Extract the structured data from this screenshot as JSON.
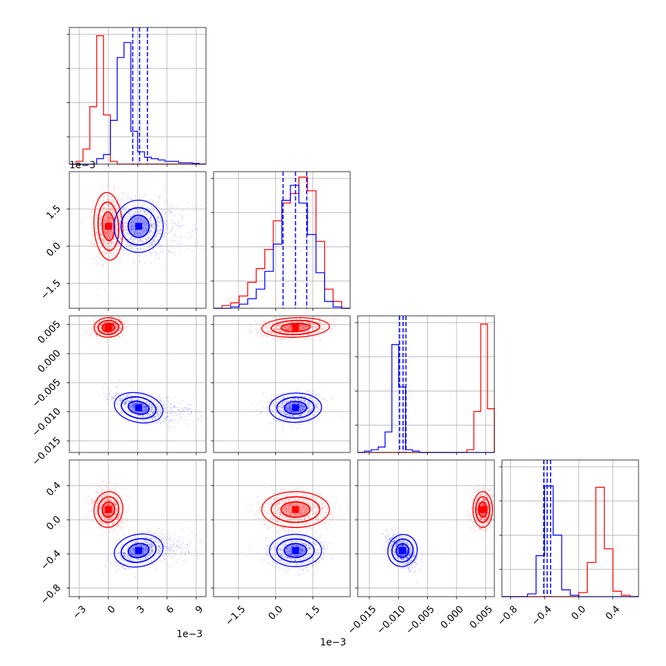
{
  "chart_data": {
    "type": "corner",
    "series": [
      {
        "name": "",
        "color": "#ff0000"
      },
      {
        "name": "",
        "color": "#0000ff"
      }
    ],
    "parameters": [
      {
        "index": 0,
        "range": [
          -4,
          10
        ],
        "tick_values": [
          -3,
          0,
          3,
          6,
          9
        ],
        "tick_labels": [
          "−3",
          "0",
          "3",
          "6",
          "9"
        ],
        "offset_label": "1e−3",
        "red": {
          "mean": 0.0,
          "sd": 0.7
        },
        "blue": {
          "mean": 3.1,
          "sd": 1.2,
          "skew_tail": true
        },
        "blue_quantiles": [
          2.5,
          3.2,
          4.0
        ],
        "red_hist": [
          0,
          0.02,
          0.11,
          0.42,
          0.94,
          0.36,
          0.02,
          0,
          0,
          0,
          0,
          0,
          0,
          0,
          0,
          0,
          0,
          0,
          0,
          0
        ],
        "blue_hist": [
          0,
          0,
          0,
          0,
          0.04,
          0.07,
          0.32,
          0.78,
          0.89,
          0.24,
          0.09,
          0.05,
          0.04,
          0.03,
          0.02,
          0.02,
          0.01,
          0.01,
          0.005,
          0
        ]
      },
      {
        "index": 1,
        "range": [
          -2.5,
          3.0
        ],
        "tick_values": [
          -1.5,
          0.0,
          1.5
        ],
        "tick_labels": [
          "−1.5",
          "0.0",
          "1.5"
        ],
        "offset_label": "1e−3",
        "red": {
          "mean": 0.8,
          "sd": 0.65
        },
        "blue": {
          "mean": 0.8,
          "sd": 0.5
        },
        "blue_quantiles": [
          0.3,
          0.8,
          1.25
        ],
        "red_hist": [
          0,
          0.02,
          0.04,
          0.09,
          0.19,
          0.29,
          0.43,
          0.64,
          0.77,
          0.84,
          0.96,
          0.86,
          0.49,
          0.14,
          0.05,
          0
        ],
        "blue_hist": [
          0,
          0,
          0.01,
          0.03,
          0.07,
          0.14,
          0.27,
          0.47,
          0.79,
          0.9,
          0.77,
          0.54,
          0.26,
          0.05,
          0.01,
          0
        ]
      },
      {
        "index": 2,
        "range": [
          -0.017,
          0.0065
        ],
        "tick_values": [
          -0.015,
          -0.01,
          -0.005,
          0.0,
          0.005
        ],
        "tick_labels": [
          "−0.015",
          "−0.010",
          "−0.005",
          "0.000",
          "0.005"
        ],
        "red": {
          "mean": 0.0045,
          "sd": 0.0008
        },
        "blue": {
          "mean": -0.0093,
          "sd": 0.0012
        },
        "blue_quantiles": [
          -0.0098,
          -0.0092,
          -0.0087
        ],
        "red_hist": [
          0,
          0,
          0,
          0,
          0,
          0,
          0,
          0,
          0,
          0,
          0,
          0,
          0,
          0,
          0,
          0,
          0.02,
          0.3,
          0.94,
          0.32
        ],
        "blue_hist": [
          0,
          0.01,
          0.02,
          0.04,
          0.15,
          0.79,
          0.48,
          0.02,
          0.01,
          0,
          0,
          0,
          0,
          0,
          0,
          0,
          0,
          0,
          0,
          0
        ]
      },
      {
        "index": 3,
        "range": [
          -0.9,
          0.7
        ],
        "tick_values": [
          -0.8,
          -0.4,
          0.0,
          0.4
        ],
        "tick_labels": [
          "−0.8",
          "−0.4",
          "0.0",
          "0.4"
        ],
        "red": {
          "mean": 0.12,
          "sd": 0.1
        },
        "blue": {
          "mean": -0.36,
          "sd": 0.09
        },
        "blue_quantiles": [
          -0.41,
          -0.37,
          -0.33
        ],
        "red_hist": [
          0,
          0,
          0,
          0,
          0,
          0,
          0,
          0,
          0,
          0.03,
          0.25,
          0.8,
          0.35,
          0.04,
          0.01,
          0
        ],
        "blue_hist": [
          0,
          0,
          0,
          0.02,
          0.3,
          0.81,
          0.45,
          0.05,
          0.01,
          0,
          0,
          0,
          0,
          0,
          0,
          0
        ]
      }
    ],
    "correlations": {
      "1_0": {
        "red": 0.05,
        "blue": 0.0
      },
      "2_0": {
        "red": 0.1,
        "blue": -0.75
      },
      "2_1": {
        "red": 0.25,
        "blue": 0.1
      },
      "3_0": {
        "red": -0.2,
        "blue": 0.6
      },
      "3_1": {
        "red": 0.0,
        "blue": 0.0
      },
      "3_2": {
        "red": 0.0,
        "blue": -0.5
      }
    },
    "grid": true
  }
}
